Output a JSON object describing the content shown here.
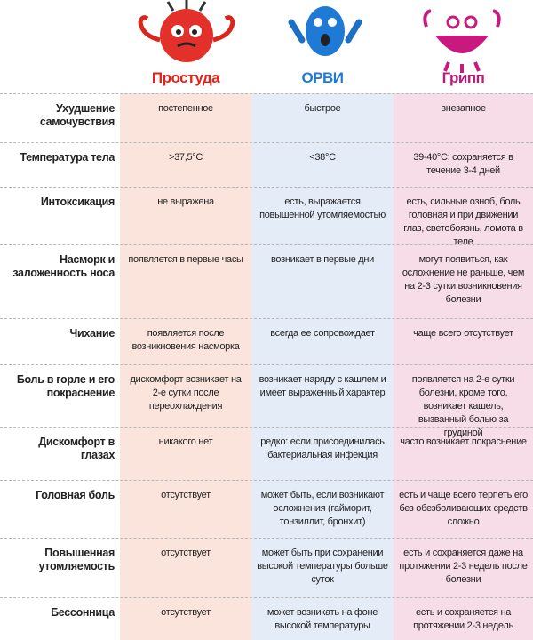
{
  "header": {
    "columns": [
      "Простуда",
      "ОРВИ",
      "Грипп"
    ]
  },
  "rows": [
    {
      "label": "Ухудшение самочувствия",
      "cells": [
        "постепенное",
        "быстрое",
        "внезапное"
      ]
    },
    {
      "label": "Температура тела",
      "cells": [
        ">37,5°С",
        "<38°С",
        "39-40°С: сохраняется в течение 3-4 дней"
      ]
    },
    {
      "label": "Интоксикация",
      "cells": [
        "не выражена",
        "есть, выражается повышенной утомляемостью",
        "есть, сильные озноб, боль головная и при движении глаз, светобоязнь, ломота в теле"
      ]
    },
    {
      "label": "Насморк и заложенность носа",
      "cells": [
        "появляется в первые часы",
        "возникает в первые дни",
        "могут появиться, как осложнение не раньше, чем на 2-3 сутки возникновения болезни"
      ]
    },
    {
      "label": "Чихание",
      "cells": [
        "появляется после возникновения насморка",
        "всегда ее сопровождает",
        "чаще всего отсутствует"
      ]
    },
    {
      "label": "Боль в горле и его покраснение",
      "cells": [
        "дискомфорт возникает на 2-е сутки после переохлаждения",
        "возникает наряду с кашлем и имеет выраженный характер",
        "появляется на 2-е сутки болезни, кроме того, возникает кашель, вызванный болью за грудиной"
      ]
    },
    {
      "label": "Дискомфорт в глазах",
      "cells": [
        "никакого нет",
        "редко: если присоединилась бактериальная инфекция",
        "часто возникает покраснение"
      ]
    },
    {
      "label": "Головная боль",
      "cells": [
        "отсутствует",
        "может быть, если возникают осложнения (гайморит, тонзиллит, бронхит)",
        "есть и чаще всего терпеть его без обезболивающих средств сложно"
      ]
    },
    {
      "label": "Повышенная утомляемость",
      "cells": [
        "отсутствует",
        "может быть при сохранении высокой температуры больше суток",
        "есть и сохраняется даже на протяжении 2-3 недель после болезни"
      ]
    },
    {
      "label": "Бессонница",
      "cells": [
        "отсутствует",
        "может возникать на фоне высокой температуры",
        "есть и сохраняется на протяжении 2-3 недель"
      ]
    }
  ]
}
